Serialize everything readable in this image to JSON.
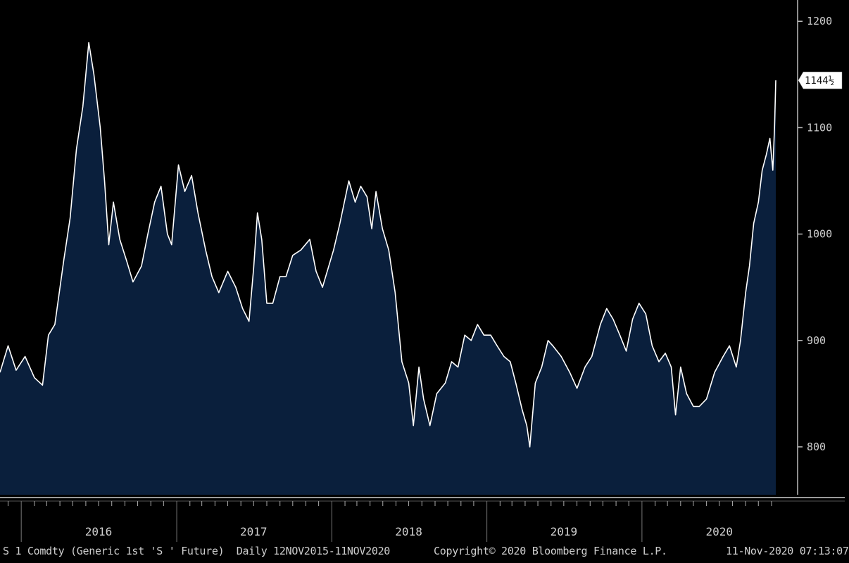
{
  "chart_data": {
    "type": "area",
    "title": "",
    "xlabel": "",
    "ylabel": "",
    "ylim": [
      755,
      1220
    ],
    "xlim": [
      "2015-11-12",
      "2020-11-11"
    ],
    "y_ticks": [
      800,
      900,
      1000,
      1100,
      1200
    ],
    "x_year_labels": [
      "2016",
      "2017",
      "2018",
      "2019",
      "2020"
    ],
    "last_value": 1144.5,
    "last_value_label": "1144½",
    "grid": false,
    "colors": {
      "fill": "#0a1f3c",
      "line": "#ffffff",
      "background": "#000000"
    },
    "points": [
      [
        "2015-11-12",
        870
      ],
      [
        "2015-12-01",
        895
      ],
      [
        "2015-12-20",
        872
      ],
      [
        "2016-01-10",
        885
      ],
      [
        "2016-02-01",
        865
      ],
      [
        "2016-02-20",
        858
      ],
      [
        "2016-03-05",
        905
      ],
      [
        "2016-03-20",
        915
      ],
      [
        "2016-04-10",
        975
      ],
      [
        "2016-04-25",
        1015
      ],
      [
        "2016-05-10",
        1080
      ],
      [
        "2016-05-25",
        1120
      ],
      [
        "2016-06-08",
        1180
      ],
      [
        "2016-06-20",
        1150
      ],
      [
        "2016-07-05",
        1100
      ],
      [
        "2016-07-15",
        1050
      ],
      [
        "2016-07-25",
        990
      ],
      [
        "2016-08-05",
        1030
      ],
      [
        "2016-08-20",
        995
      ],
      [
        "2016-09-05",
        975
      ],
      [
        "2016-09-20",
        955
      ],
      [
        "2016-10-10",
        970
      ],
      [
        "2016-10-25",
        1000
      ],
      [
        "2016-11-10",
        1030
      ],
      [
        "2016-11-25",
        1045
      ],
      [
        "2016-12-10",
        1000
      ],
      [
        "2016-12-20",
        990
      ],
      [
        "2017-01-05",
        1065
      ],
      [
        "2017-01-20",
        1040
      ],
      [
        "2017-02-05",
        1055
      ],
      [
        "2017-02-20",
        1020
      ],
      [
        "2017-03-10",
        985
      ],
      [
        "2017-03-25",
        960
      ],
      [
        "2017-04-10",
        945
      ],
      [
        "2017-05-01",
        965
      ],
      [
        "2017-05-20",
        950
      ],
      [
        "2017-06-05",
        930
      ],
      [
        "2017-06-20",
        918
      ],
      [
        "2017-07-01",
        968
      ],
      [
        "2017-07-10",
        1020
      ],
      [
        "2017-07-20",
        995
      ],
      [
        "2017-08-01",
        935
      ],
      [
        "2017-08-15",
        935
      ],
      [
        "2017-09-01",
        960
      ],
      [
        "2017-09-15",
        960
      ],
      [
        "2017-10-01",
        980
      ],
      [
        "2017-10-20",
        985
      ],
      [
        "2017-11-10",
        995
      ],
      [
        "2017-11-25",
        965
      ],
      [
        "2017-12-10",
        950
      ],
      [
        "2018-01-05",
        985
      ],
      [
        "2018-01-20",
        1010
      ],
      [
        "2018-02-10",
        1050
      ],
      [
        "2018-02-25",
        1030
      ],
      [
        "2018-03-10",
        1045
      ],
      [
        "2018-03-25",
        1035
      ],
      [
        "2018-04-05",
        1005
      ],
      [
        "2018-04-15",
        1040
      ],
      [
        "2018-04-30",
        1005
      ],
      [
        "2018-05-15",
        985
      ],
      [
        "2018-05-30",
        945
      ],
      [
        "2018-06-15",
        880
      ],
      [
        "2018-07-01",
        860
      ],
      [
        "2018-07-12",
        820
      ],
      [
        "2018-07-25",
        875
      ],
      [
        "2018-08-05",
        845
      ],
      [
        "2018-08-20",
        820
      ],
      [
        "2018-09-05",
        850
      ],
      [
        "2018-09-25",
        860
      ],
      [
        "2018-10-10",
        880
      ],
      [
        "2018-10-25",
        875
      ],
      [
        "2018-11-10",
        905
      ],
      [
        "2018-11-25",
        900
      ],
      [
        "2018-12-10",
        915
      ],
      [
        "2018-12-25",
        905
      ],
      [
        "2019-01-10",
        905
      ],
      [
        "2019-01-25",
        895
      ],
      [
        "2019-02-10",
        885
      ],
      [
        "2019-02-25",
        880
      ],
      [
        "2019-03-10",
        860
      ],
      [
        "2019-03-25",
        835
      ],
      [
        "2019-04-05",
        820
      ],
      [
        "2019-04-12",
        800
      ],
      [
        "2019-04-25",
        860
      ],
      [
        "2019-05-10",
        875
      ],
      [
        "2019-05-25",
        900
      ],
      [
        "2019-06-05",
        895
      ],
      [
        "2019-06-25",
        885
      ],
      [
        "2019-07-15",
        870
      ],
      [
        "2019-08-01",
        855
      ],
      [
        "2019-08-20",
        875
      ],
      [
        "2019-09-05",
        885
      ],
      [
        "2019-09-25",
        915
      ],
      [
        "2019-10-10",
        930
      ],
      [
        "2019-10-25",
        920
      ],
      [
        "2019-11-10",
        905
      ],
      [
        "2019-11-25",
        890
      ],
      [
        "2019-12-10",
        920
      ],
      [
        "2019-12-25",
        935
      ],
      [
        "2020-01-10",
        925
      ],
      [
        "2020-01-25",
        895
      ],
      [
        "2020-02-10",
        880
      ],
      [
        "2020-02-25",
        888
      ],
      [
        "2020-03-10",
        875
      ],
      [
        "2020-03-20",
        830
      ],
      [
        "2020-04-01",
        875
      ],
      [
        "2020-04-15",
        850
      ],
      [
        "2020-05-01",
        838
      ],
      [
        "2020-05-15",
        838
      ],
      [
        "2020-06-01",
        845
      ],
      [
        "2020-06-20",
        870
      ],
      [
        "2020-07-10",
        885
      ],
      [
        "2020-07-25",
        895
      ],
      [
        "2020-08-10",
        875
      ],
      [
        "2020-08-20",
        900
      ],
      [
        "2020-09-01",
        945
      ],
      [
        "2020-09-10",
        970
      ],
      [
        "2020-09-20",
        1010
      ],
      [
        "2020-10-01",
        1030
      ],
      [
        "2020-10-10",
        1060
      ],
      [
        "2020-10-20",
        1075
      ],
      [
        "2020-10-28",
        1090
      ],
      [
        "2020-11-04",
        1060
      ],
      [
        "2020-11-08",
        1100
      ],
      [
        "2020-11-11",
        1144.5
      ]
    ]
  },
  "footer": {
    "left": "S 1 Comdty (Generic 1st 'S ' Future)  Daily 12NOV2015-11NOV2020",
    "center": "Copyright© 2020 Bloomberg Finance L.P.",
    "right": "11-Nov-2020 07:13:07"
  }
}
